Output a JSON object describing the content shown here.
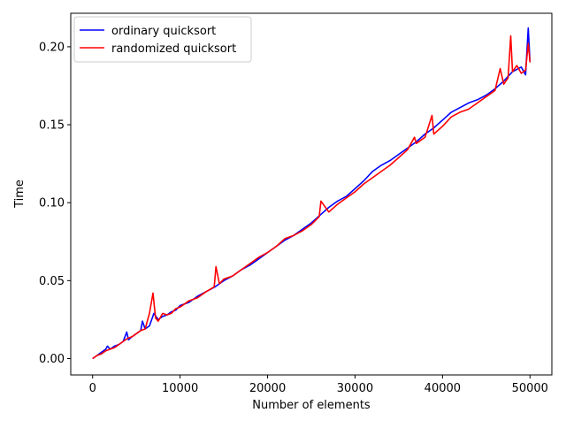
{
  "chart_data": {
    "type": "line",
    "xlabel": "Number of elements",
    "ylabel": "Time",
    "xlim": [
      -2500,
      52500
    ],
    "ylim": [
      -0.0105,
      0.2215
    ],
    "xticks": [
      0,
      10000,
      20000,
      30000,
      40000,
      50000
    ],
    "xtick_labels": [
      "0",
      "10000",
      "20000",
      "30000",
      "40000",
      "50000"
    ],
    "yticks": [
      0.0,
      0.05,
      0.1,
      0.15,
      0.2
    ],
    "ytick_labels": [
      "0.00",
      "0.05",
      "0.10",
      "0.15",
      "0.20"
    ],
    "grid": false,
    "legend_position": "top-left",
    "series": [
      {
        "name": "ordinary quicksort",
        "color": "#0000ff",
        "x": [
          0,
          500,
          1000,
          1500,
          1700,
          2000,
          2500,
          3000,
          3500,
          3900,
          4100,
          4500,
          5000,
          5500,
          5700,
          6000,
          6500,
          7000,
          7500,
          8000,
          8500,
          9000,
          9500,
          10000,
          11000,
          12000,
          13000,
          14000,
          15000,
          16000,
          17000,
          18000,
          19000,
          20000,
          21000,
          22000,
          23000,
          24000,
          25000,
          26000,
          27000,
          28000,
          29000,
          30000,
          31000,
          32000,
          33000,
          34000,
          35000,
          36000,
          37000,
          38000,
          39000,
          40000,
          41000,
          42000,
          43000,
          44000,
          45000,
          46000,
          47000,
          48000,
          49000,
          49500,
          49800,
          50000
        ],
        "y": [
          0.0,
          0.002,
          0.004,
          0.006,
          0.008,
          0.006,
          0.008,
          0.009,
          0.011,
          0.017,
          0.012,
          0.014,
          0.016,
          0.018,
          0.024,
          0.019,
          0.021,
          0.029,
          0.025,
          0.027,
          0.028,
          0.03,
          0.031,
          0.034,
          0.036,
          0.04,
          0.043,
          0.046,
          0.05,
          0.053,
          0.057,
          0.06,
          0.064,
          0.068,
          0.072,
          0.076,
          0.079,
          0.083,
          0.087,
          0.092,
          0.097,
          0.101,
          0.104,
          0.109,
          0.114,
          0.12,
          0.124,
          0.127,
          0.131,
          0.135,
          0.139,
          0.144,
          0.148,
          0.153,
          0.158,
          0.161,
          0.164,
          0.166,
          0.169,
          0.173,
          0.178,
          0.184,
          0.187,
          0.182,
          0.212,
          0.19
        ]
      },
      {
        "name": "randomized quicksort",
        "color": "#ff0000",
        "x": [
          0,
          500,
          1000,
          1500,
          2000,
          2500,
          3000,
          3500,
          4000,
          4500,
          5000,
          5500,
          6000,
          6500,
          6900,
          7200,
          7500,
          8000,
          8500,
          9000,
          9500,
          10000,
          11000,
          12000,
          13000,
          13900,
          14100,
          14500,
          15000,
          16000,
          17000,
          18000,
          19000,
          20000,
          21000,
          22000,
          23000,
          24000,
          25000,
          25900,
          26100,
          27000,
          28000,
          29000,
          30000,
          31000,
          32000,
          33000,
          34000,
          35000,
          36000,
          36800,
          37000,
          38000,
          38800,
          39000,
          40000,
          41000,
          42000,
          43000,
          44000,
          45000,
          46000,
          46600,
          47000,
          47500,
          47800,
          48000,
          48500,
          49000,
          49500,
          49800,
          50000
        ],
        "y": [
          0.0,
          0.002,
          0.003,
          0.005,
          0.006,
          0.007,
          0.009,
          0.011,
          0.013,
          0.014,
          0.016,
          0.018,
          0.019,
          0.029,
          0.042,
          0.026,
          0.024,
          0.029,
          0.028,
          0.029,
          0.032,
          0.033,
          0.037,
          0.039,
          0.043,
          0.046,
          0.059,
          0.048,
          0.051,
          0.053,
          0.057,
          0.061,
          0.065,
          0.068,
          0.072,
          0.077,
          0.079,
          0.082,
          0.086,
          0.091,
          0.101,
          0.094,
          0.099,
          0.103,
          0.107,
          0.112,
          0.116,
          0.12,
          0.124,
          0.129,
          0.134,
          0.142,
          0.138,
          0.142,
          0.156,
          0.144,
          0.149,
          0.155,
          0.158,
          0.16,
          0.164,
          0.168,
          0.172,
          0.186,
          0.176,
          0.18,
          0.207,
          0.184,
          0.188,
          0.183,
          0.185,
          0.202,
          0.19
        ]
      }
    ]
  }
}
